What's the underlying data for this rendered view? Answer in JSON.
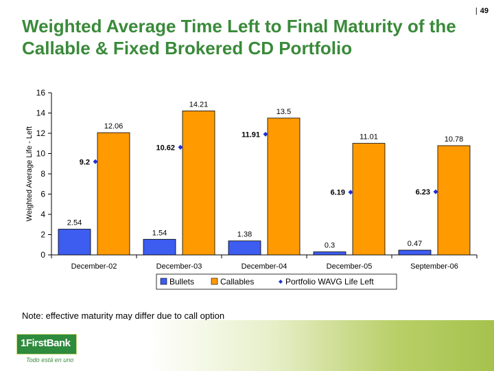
{
  "page_number": "49",
  "title": "Weighted Average Time Left to Final Maturity of the Callable & Fixed Brokered CD Portfolio",
  "note": "Note: effective maturity may differ due to call option",
  "logo": {
    "text": "1FirstBank",
    "tagline": "Todo está en uno"
  },
  "colors": {
    "title": "#3a8a3a",
    "bullets": "#3d5cf0",
    "callables": "#ff9a00",
    "wavg": "#1f2fd6"
  },
  "chart_data": {
    "type": "bar",
    "ylabel": "Weighted Average Life - Left",
    "xlabel": "",
    "ylim": [
      0,
      16
    ],
    "yticks": [
      0,
      2,
      4,
      6,
      8,
      10,
      12,
      14,
      16
    ],
    "grid": false,
    "legend_position": "bottom",
    "categories": [
      "December-02",
      "December-03",
      "December-04",
      "December-05",
      "September-06"
    ],
    "series": [
      {
        "name": "Bullets",
        "kind": "bar",
        "values": [
          2.54,
          1.54,
          1.38,
          0.3,
          0.47
        ]
      },
      {
        "name": "Callables",
        "kind": "bar",
        "values": [
          12.06,
          14.21,
          13.5,
          11.01,
          10.78
        ]
      },
      {
        "name": "Portfolio WAVG Life Left",
        "kind": "marker",
        "values": [
          9.2,
          10.62,
          11.91,
          6.19,
          6.23
        ]
      }
    ]
  }
}
